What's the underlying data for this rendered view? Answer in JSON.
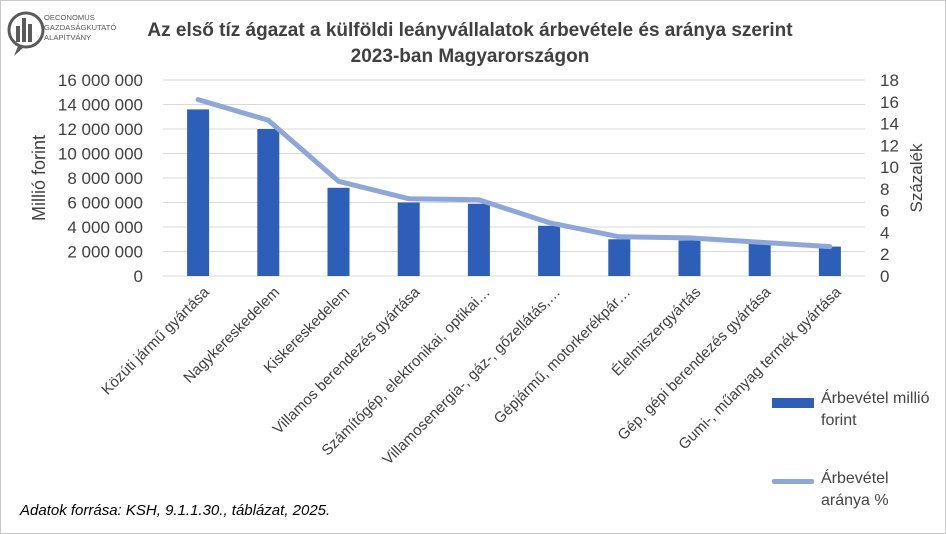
{
  "logo": {
    "lines": [
      "OECONOMUS",
      "GAZDASÁGKUTATÓ",
      "ALAPÍTVÁNY"
    ]
  },
  "title_line1": "Az első tíz ágazat a külföldi leányvállalatok árbevétele és aránya szerint",
  "title_line2": "2023-ban Magyarországon",
  "source": "Adatok forrása: KSH, 9.1.1.30., táblázat, 2025.",
  "colors": {
    "bar": "#2e5fb8",
    "bar_dark": "#1f4a9a",
    "line": "#8ea7d8",
    "grid": "#d9d9d9",
    "text": "#404040"
  },
  "chart_data": {
    "type": "bar",
    "categories": [
      "Közúti jármű gyártása",
      "Nagykereskedelem",
      "Kiskereskedelem",
      "Villamos berendezés gyártása",
      "Számítógép, elektronikai, optikai…",
      "Villamosenergia-, gáz-, gőzellátás,…",
      "Gépjármű, motorkerékpár…",
      "Élelmiszergyártás",
      "Gép, gépi berendezés gyártása",
      "Gumi-, műanyag termék gyártása"
    ],
    "series": [
      {
        "name": "Árbevétel millió forint",
        "type": "bar",
        "axis": "left",
        "values": [
          13600000,
          12000000,
          7200000,
          6000000,
          5900000,
          4100000,
          3000000,
          2900000,
          2700000,
          2400000
        ]
      },
      {
        "name": "Árbevétel aránya %",
        "type": "line",
        "axis": "right",
        "values": [
          16.2,
          14.3,
          8.7,
          7.1,
          7.0,
          4.9,
          3.6,
          3.5,
          3.1,
          2.7
        ]
      }
    ],
    "ylabel": "Millió forint",
    "y2label": "Százalék",
    "ylim": [
      0,
      16000000
    ],
    "y2lim": [
      0,
      18
    ],
    "yticks": [
      "0",
      "2 000 000",
      "4 000 000",
      "6 000 000",
      "8 000 000",
      "10 000 000",
      "12 000 000",
      "14 000 000",
      "16 000 000"
    ],
    "y2ticks": [
      "0",
      "2",
      "4",
      "6",
      "8",
      "10",
      "12",
      "14",
      "16",
      "18"
    ],
    "legend_position": "right"
  }
}
